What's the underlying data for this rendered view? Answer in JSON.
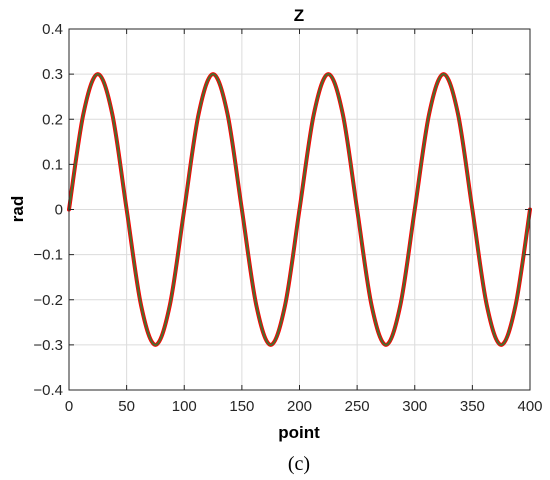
{
  "figure": {
    "caption": "(c)"
  },
  "chart_data": {
    "type": "line",
    "title": "Z",
    "xlabel": "point",
    "ylabel": "rad",
    "xlim": [
      0,
      400
    ],
    "ylim": [
      -0.4,
      0.4
    ],
    "xticks": [
      0,
      50,
      100,
      150,
      200,
      250,
      300,
      350,
      400
    ],
    "yticks": [
      -0.4,
      -0.3,
      -0.2,
      -0.1,
      0,
      0.1,
      0.2,
      0.3,
      0.4
    ],
    "xtick_labels": [
      "0",
      "50",
      "100",
      "150",
      "200",
      "250",
      "300",
      "350",
      "400"
    ],
    "ytick_labels": [
      "−0.4",
      "−0.3",
      "−0.2",
      "−0.1",
      "0",
      "0.1",
      "0.2",
      "0.3",
      "0.4"
    ],
    "grid": true,
    "legend": "none",
    "series": [
      {
        "color": "#ff0000",
        "x": [
          0,
          12.5,
          25,
          37.5,
          50,
          62.5,
          75,
          87.5,
          100,
          112.5,
          125,
          137.5,
          150,
          162.5,
          175,
          187.5,
          200,
          212.5,
          225,
          237.5,
          250,
          262.5,
          275,
          287.5,
          300,
          312.5,
          325,
          337.5,
          350,
          362.5,
          375,
          387.5,
          400
        ],
        "y": [
          0,
          0.212,
          0.3,
          0.212,
          0,
          -0.212,
          -0.3,
          -0.212,
          0,
          0.212,
          0.3,
          0.212,
          0,
          -0.212,
          -0.3,
          -0.212,
          0,
          0.212,
          0.3,
          0.212,
          0,
          -0.212,
          -0.3,
          -0.212,
          0,
          0.212,
          0.3,
          0.212,
          0,
          -0.212,
          -0.3,
          -0.212,
          0
        ]
      },
      {
        "color": "#4d6b2e",
        "x": [
          0,
          12.5,
          25,
          37.5,
          50,
          62.5,
          75,
          87.5,
          100,
          112.5,
          125,
          137.5,
          150,
          162.5,
          175,
          187.5,
          200,
          212.5,
          225,
          237.5,
          250,
          262.5,
          275,
          287.5,
          300,
          312.5,
          325,
          337.5,
          350,
          362.5,
          375,
          387.5,
          400
        ],
        "y": [
          0,
          0.212,
          0.3,
          0.212,
          0,
          -0.212,
          -0.3,
          -0.212,
          0,
          0.212,
          0.3,
          0.212,
          0,
          -0.212,
          -0.3,
          -0.212,
          0,
          0.212,
          0.3,
          0.212,
          0,
          -0.212,
          -0.3,
          -0.212,
          0,
          0.212,
          0.3,
          0.212,
          0,
          -0.212,
          -0.3,
          -0.212,
          0
        ]
      }
    ]
  }
}
